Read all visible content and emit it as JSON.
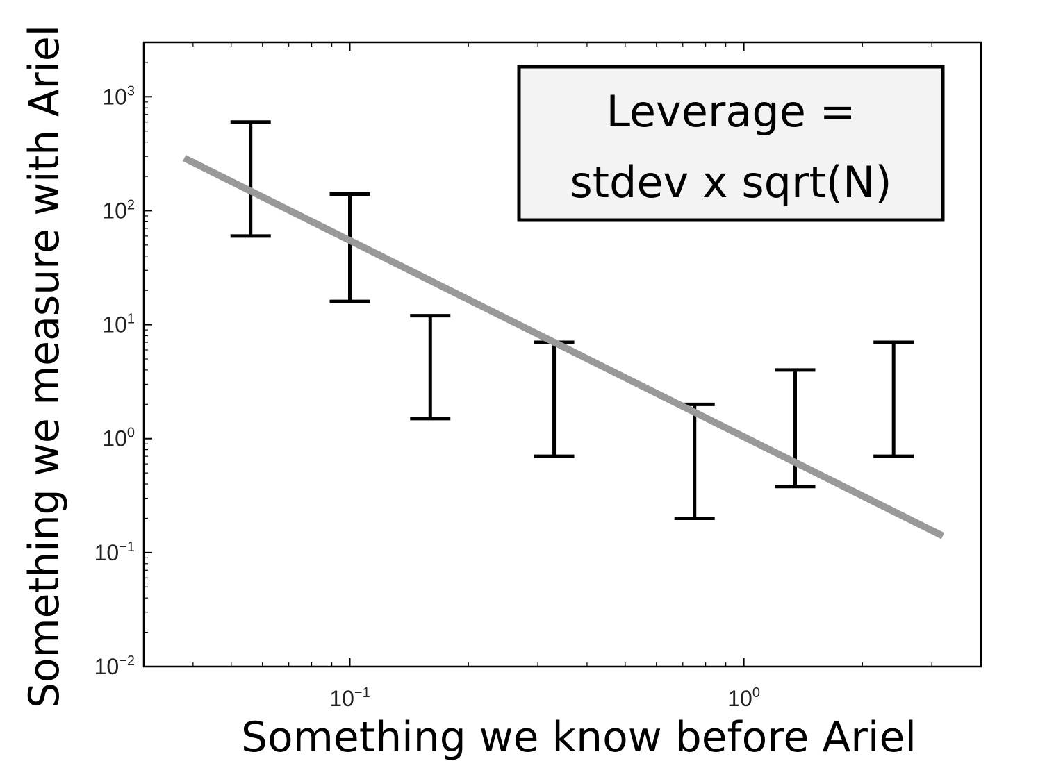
{
  "chart_data": {
    "type": "scatter",
    "title": "",
    "xlabel": "Something we know before Ariel",
    "ylabel": "Something we measure with Ariel",
    "xscale": "log",
    "yscale": "log",
    "xlim": [
      0.03,
      4.0
    ],
    "ylim": [
      0.01,
      3000
    ],
    "xticks": [
      {
        "value": 0.1,
        "base": "10",
        "exp": "−1"
      },
      {
        "value": 1,
        "base": "10",
        "exp": "0"
      }
    ],
    "yticks": [
      {
        "value": 0.01,
        "base": "10",
        "exp": "−2"
      },
      {
        "value": 0.1,
        "base": "10",
        "exp": "−1"
      },
      {
        "value": 1,
        "base": "10",
        "exp": "0"
      },
      {
        "value": 10,
        "base": "10",
        "exp": "1"
      },
      {
        "value": 100,
        "base": "10",
        "exp": "2"
      },
      {
        "value": 1000,
        "base": "10",
        "exp": "3"
      }
    ],
    "error_bars": [
      {
        "x": 0.056,
        "low": 60,
        "high": 600
      },
      {
        "x": 0.1,
        "low": 16,
        "high": 140
      },
      {
        "x": 0.16,
        "low": 1.5,
        "high": 12
      },
      {
        "x": 0.33,
        "low": 0.7,
        "high": 7
      },
      {
        "x": 0.75,
        "low": 0.2,
        "high": 2
      },
      {
        "x": 1.35,
        "low": 0.38,
        "high": 4
      },
      {
        "x": 2.4,
        "low": 0.7,
        "high": 7
      }
    ],
    "trend_line": {
      "x": [
        0.038,
        3.2
      ],
      "y": [
        290,
        0.14
      ],
      "color": "#999999"
    },
    "grid": false,
    "annotation": {
      "lines": [
        "Leverage =",
        "stdev x sqrt(N)"
      ],
      "placement": "top-right"
    }
  }
}
